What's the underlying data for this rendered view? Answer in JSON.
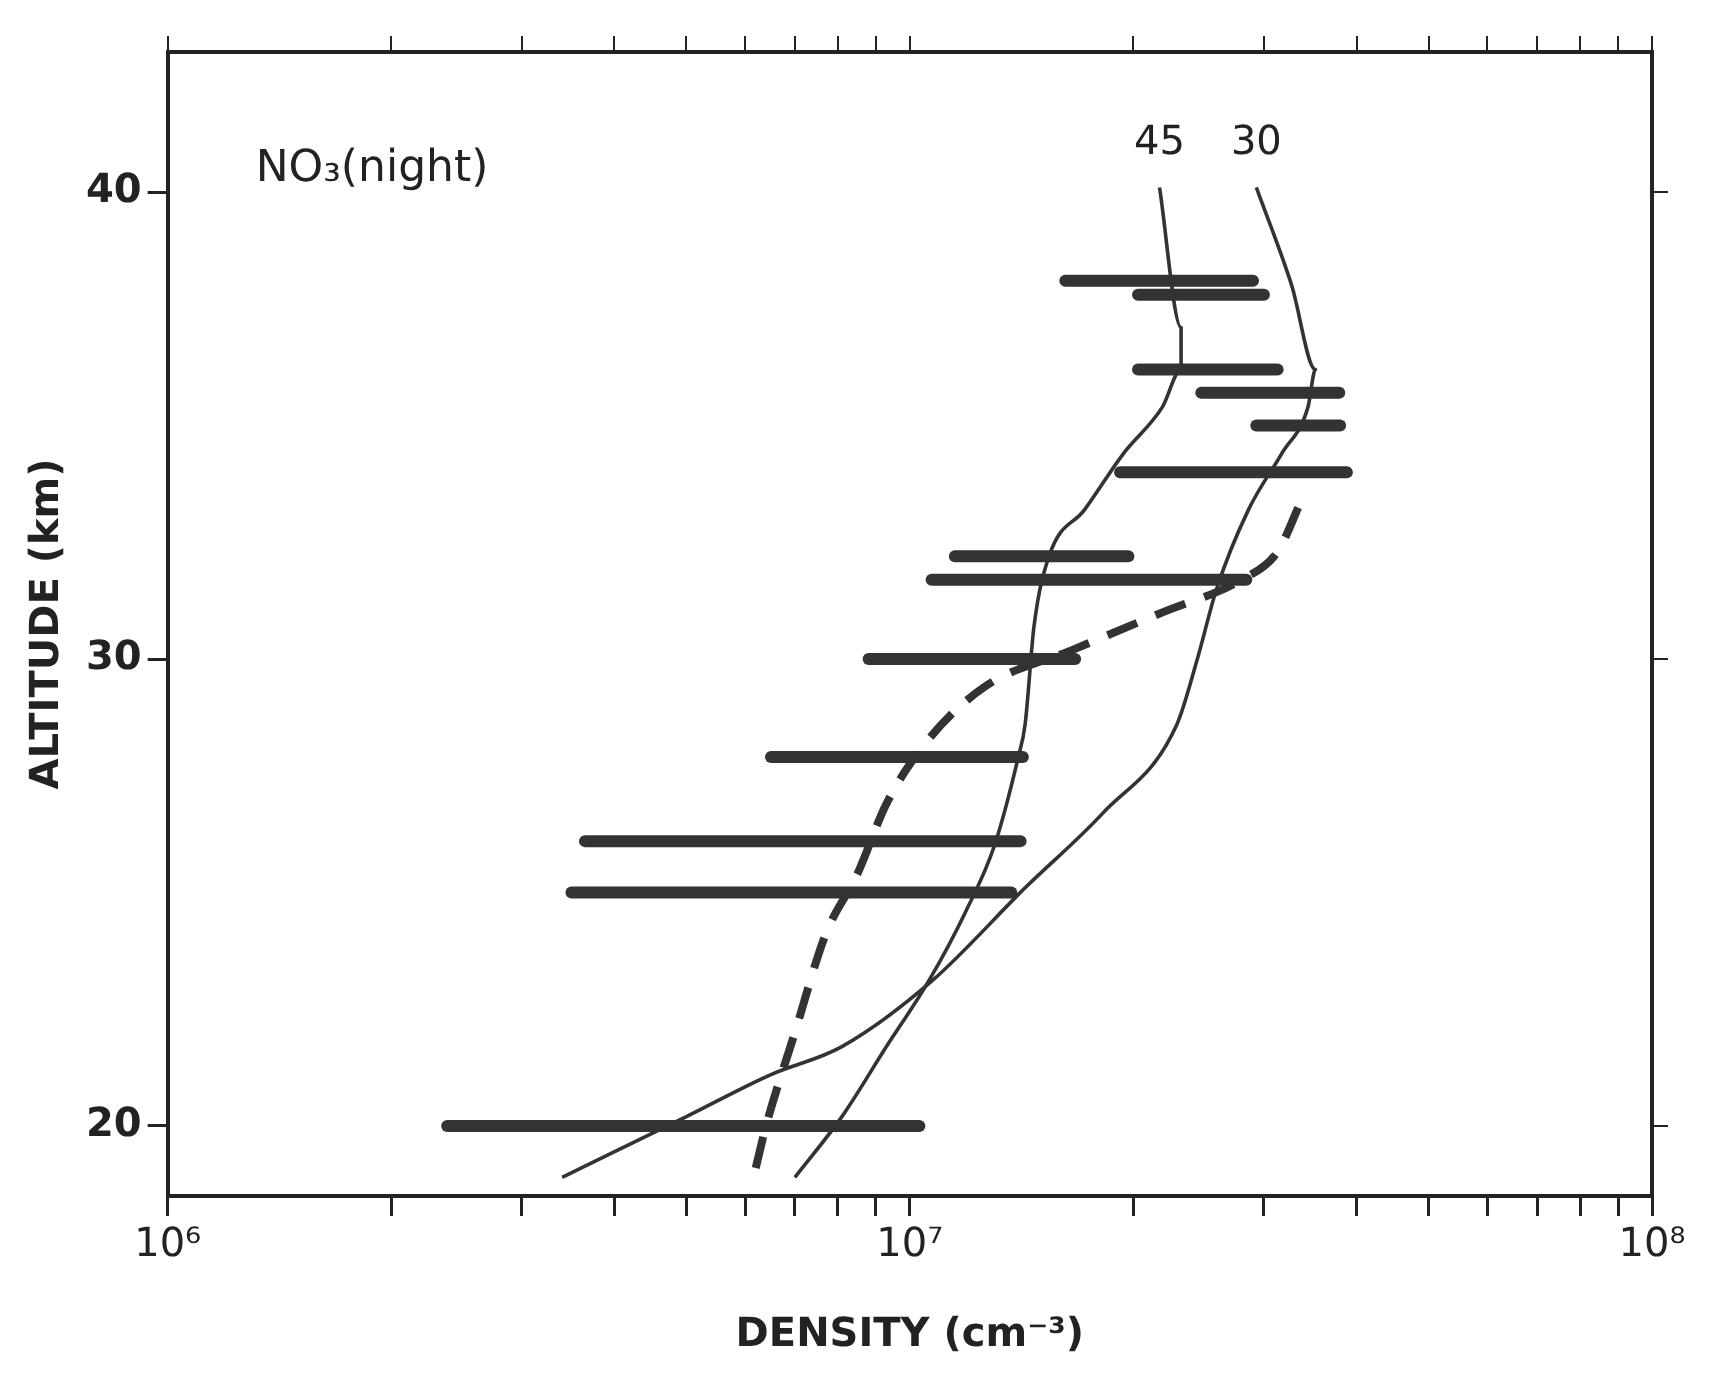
{
  "chart_data": {
    "type": "line",
    "xlabel": "DENSITY (cm⁻³)",
    "ylabel": "ALTITUDE (km)",
    "annotations": [
      "NO₃(night)"
    ],
    "log": "x",
    "grid": false,
    "legend": false,
    "marker": "none",
    "xlim": [
      1000000,
      100000000
    ],
    "xticks": [
      {
        "value": 1000000,
        "label": "10⁶"
      },
      {
        "value": 2000000,
        "label": null
      },
      {
        "value": 3000000,
        "label": null
      },
      {
        "value": 4000000,
        "label": null
      },
      {
        "value": 5000000,
        "label": null
      },
      {
        "value": 6000000,
        "label": null
      },
      {
        "value": 7000000,
        "label": null
      },
      {
        "value": 8000000,
        "label": null
      },
      {
        "value": 9000000,
        "label": null
      },
      {
        "value": 10000000,
        "label": "10⁷"
      },
      {
        "value": 20000000,
        "label": null
      },
      {
        "value": 30000000,
        "label": null
      },
      {
        "value": 40000000,
        "label": null
      },
      {
        "value": 50000000,
        "label": null
      },
      {
        "value": 60000000,
        "label": null
      },
      {
        "value": 70000000,
        "label": null
      },
      {
        "value": 80000000,
        "label": null
      },
      {
        "value": 90000000,
        "label": null
      },
      {
        "value": 100000000,
        "label": "10⁸"
      }
    ],
    "ylim": [
      18.5,
      43
    ],
    "yticks": [
      20,
      30,
      40
    ],
    "series": [
      {
        "name": "45",
        "color": "#333333",
        "line_style": "solid",
        "x": [
          21700000,
          23200000,
          23200000,
          21900000,
          19400000,
          17200000,
          15400000,
          14700000,
          14300000,
          14000000,
          13000000,
          11900000,
          10600000,
          9300000,
          8100000,
          7000000
        ],
        "values": [
          40.1,
          37.1,
          36.2,
          35.4,
          34.4,
          33.2,
          32.2,
          30.7,
          28.6,
          27.9,
          26.0,
          24.6,
          23.1,
          21.7,
          20.2,
          18.9
        ]
      },
      {
        "name": "30",
        "color": "#333333",
        "line_style": "solid",
        "x": [
          29300000,
          32700000,
          35200000,
          34400000,
          31700000,
          28600000,
          25900000,
          24400000,
          22900000,
          18200000,
          14300000,
          10700000,
          8100000,
          6500000,
          5000000,
          3400000
        ],
        "values": [
          40.1,
          38.0,
          36.2,
          35.4,
          34.4,
          33.2,
          31.5,
          30.0,
          28.6,
          26.7,
          25.1,
          23.1,
          21.7,
          21.1,
          20.2,
          18.9
        ]
      },
      {
        "color": "#333333",
        "line_style": "dashed",
        "x": [
          6200000,
          6400000,
          7000000,
          7700000,
          8500000,
          9300000,
          10500000,
          12600000,
          16600000,
          21900000,
          28000000,
          31300000,
          33700000
        ],
        "values": [
          19.1,
          20.0,
          22.0,
          24.1,
          25.4,
          26.9,
          28.2,
          29.4,
          30.2,
          31.0,
          31.7,
          32.3,
          33.4
        ]
      },
      {
        "color": "#333333",
        "line_style": "solid",
        "x": [
          16200000,
          29000000
        ],
        "values": [
          38.1,
          38.1
        ]
      },
      {
        "color": "#333333",
        "line_style": "solid",
        "x": [
          20300000,
          30000000
        ],
        "values": [
          37.8,
          37.8
        ]
      },
      {
        "color": "#333333",
        "line_style": "solid",
        "x": [
          20300000,
          31300000
        ],
        "values": [
          36.2,
          36.2
        ]
      },
      {
        "color": "#333333",
        "line_style": "solid",
        "x": [
          24700000,
          37900000
        ],
        "values": [
          35.7,
          35.7
        ]
      },
      {
        "color": "#333333",
        "line_style": "solid",
        "x": [
          29300000,
          38000000
        ],
        "values": [
          35.0,
          35.0
        ]
      },
      {
        "color": "#333333",
        "line_style": "solid",
        "x": [
          19200000,
          38800000
        ],
        "values": [
          34.0,
          34.0
        ]
      },
      {
        "color": "#333333",
        "line_style": "solid",
        "x": [
          11500000,
          19700000
        ],
        "values": [
          32.2,
          32.2
        ]
      },
      {
        "color": "#333333",
        "line_style": "solid",
        "x": [
          10700000,
          28400000
        ],
        "values": [
          31.7,
          31.7
        ]
      },
      {
        "color": "#333333",
        "line_style": "solid",
        "x": [
          8800000,
          16700000
        ],
        "values": [
          30.0,
          30.0
        ]
      },
      {
        "color": "#333333",
        "line_style": "solid",
        "x": [
          6500000,
          14200000
        ],
        "values": [
          27.9,
          27.9
        ]
      },
      {
        "color": "#333333",
        "line_style": "solid",
        "x": [
          3650000,
          14100000
        ],
        "values": [
          26.1,
          26.1
        ]
      },
      {
        "color": "#333333",
        "line_style": "solid",
        "x": [
          3500000,
          13700000
        ],
        "values": [
          25.0,
          25.0
        ]
      },
      {
        "color": "#333333",
        "line_style": "solid",
        "x": [
          2380000,
          10300000
        ],
        "values": [
          20.0,
          20.0
        ]
      }
    ]
  }
}
